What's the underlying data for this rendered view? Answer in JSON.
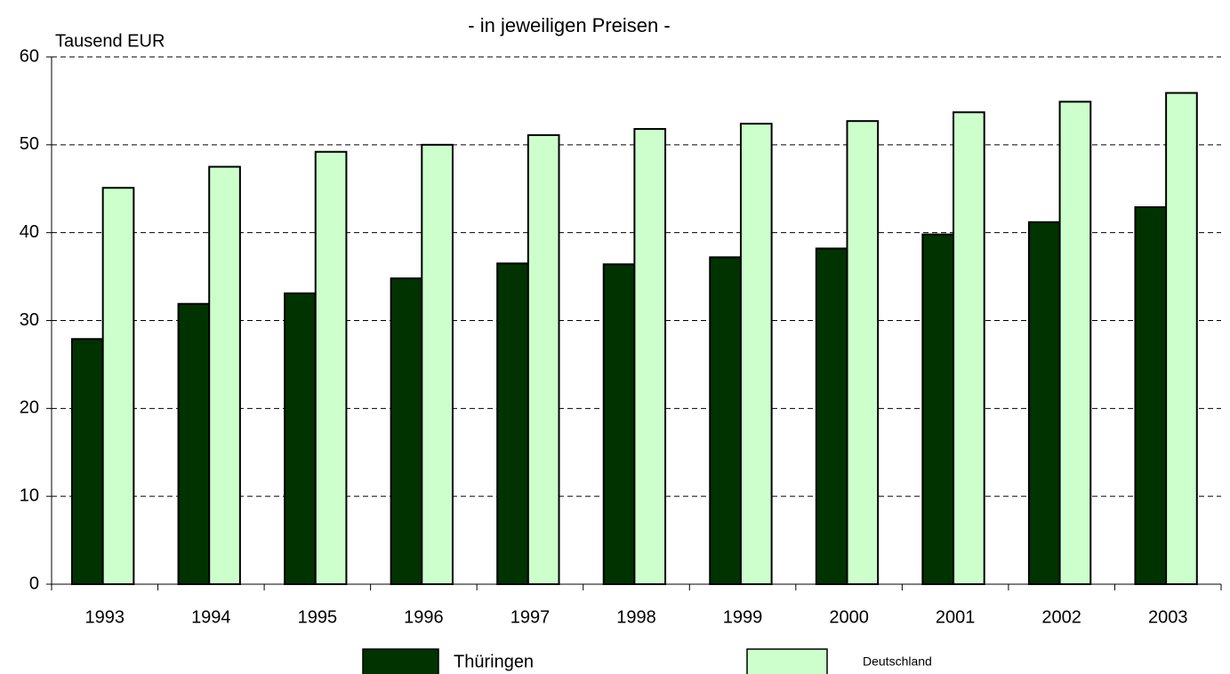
{
  "chart_data": {
    "type": "bar",
    "title": "- in jeweiligen Preisen -",
    "y_axis_label": "Tausend EUR",
    "categories": [
      "1993",
      "1994",
      "1995",
      "1996",
      "1997",
      "1998",
      "1999",
      "2000",
      "2001",
      "2002",
      "2003"
    ],
    "series": [
      {
        "name": "Thüringen",
        "color": "#003300",
        "values": [
          27.9,
          31.9,
          33.1,
          34.8,
          36.5,
          36.4,
          37.2,
          38.2,
          39.8,
          41.2,
          42.9
        ]
      },
      {
        "name": "Deutschland",
        "color": "#ccffcc",
        "values": [
          45.1,
          47.5,
          49.2,
          50.0,
          51.1,
          51.8,
          52.4,
          52.7,
          53.7,
          54.9,
          55.9
        ]
      }
    ],
    "ylim": [
      0,
      60
    ],
    "yticks": [
      0,
      10,
      20,
      30,
      40,
      50,
      60
    ],
    "grid": true,
    "legend": "bottom"
  }
}
